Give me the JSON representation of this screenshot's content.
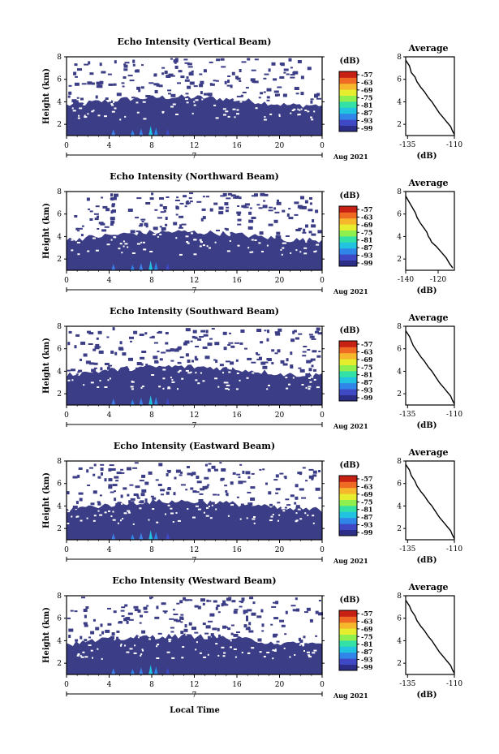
{
  "figure": {
    "common_xlabel": "Local Time",
    "colorbar_unit": "(dB)",
    "colorbar_ticks": [
      "-57",
      "-63",
      "-69",
      "-75",
      "-81",
      "-87",
      "-93",
      "-99"
    ],
    "colormap": [
      "#2b2d86",
      "#3f49c4",
      "#2f86e8",
      "#21c3e0",
      "#33e0a6",
      "#8eef4f",
      "#e6ec2e",
      "#f6b72d",
      "#ef6a22",
      "#c72114"
    ],
    "background_color": "#3b3d86"
  },
  "chart_data": [
    {
      "type": "heatmap",
      "title": "Echo Intensity (Vertical Beam)",
      "ylabel": "Height (km)",
      "ylim": [
        1,
        8
      ],
      "yticks": [
        "2",
        "4",
        "6",
        "8"
      ],
      "xlim": [
        0,
        24
      ],
      "xticks": [
        "0",
        "4",
        "8",
        "12",
        "16",
        "20",
        "0"
      ],
      "date_axis": {
        "day": "7",
        "month_year": "Aug 2021"
      },
      "profile": {
        "title": "Average",
        "xlabel": "(dB)",
        "xlim": [
          -136,
          -110
        ],
        "xticks": [
          "-135",
          "-110"
        ],
        "ylim": [
          1,
          8
        ],
        "yticks": [
          "2",
          "4",
          "6",
          "8"
        ],
        "x": [
          -136,
          -134,
          -133,
          -131,
          -130,
          -128,
          -126,
          -124,
          -122,
          -120,
          -118,
          -116,
          -114,
          -112,
          -111,
          -110
        ],
        "y": [
          7.7,
          7.2,
          6.6,
          6.2,
          5.8,
          5.3,
          4.9,
          4.4,
          4.0,
          3.5,
          3.0,
          2.6,
          2.2,
          1.8,
          1.4,
          1.1
        ]
      }
    },
    {
      "type": "heatmap",
      "title": "Echo Intensity (Northward Beam)",
      "ylabel": "Height (km)",
      "ylim": [
        1,
        8
      ],
      "yticks": [
        "2",
        "4",
        "6",
        "8"
      ],
      "xlim": [
        0,
        24
      ],
      "xticks": [
        "0",
        "4",
        "8",
        "12",
        "16",
        "20",
        "0"
      ],
      "date_axis": {
        "day": "7",
        "month_year": "Aug 2021"
      },
      "profile": {
        "title": "Average",
        "xlabel": "(dB)",
        "xlim": [
          -140,
          -110
        ],
        "xticks": [
          "-140",
          "-120"
        ],
        "ylim": [
          1,
          8
        ],
        "yticks": [
          "2",
          "4",
          "6",
          "8"
        ],
        "x": [
          -140,
          -138,
          -136,
          -134,
          -133,
          -131,
          -129,
          -127,
          -126,
          -125,
          -124,
          -121,
          -118,
          -115,
          -113,
          -111
        ],
        "y": [
          7.6,
          7.1,
          6.6,
          6.1,
          5.7,
          5.2,
          4.8,
          4.4,
          4.0,
          3.8,
          3.5,
          3.1,
          2.6,
          2.1,
          1.6,
          1.2
        ]
      }
    },
    {
      "type": "heatmap",
      "title": "Echo Intensity (Southward Beam)",
      "ylabel": "Height (km)",
      "ylim": [
        1,
        8
      ],
      "yticks": [
        "2",
        "4",
        "6",
        "8"
      ],
      "xlim": [
        0,
        24
      ],
      "xticks": [
        "0",
        "4",
        "8",
        "12",
        "16",
        "20",
        "0"
      ],
      "date_axis": {
        "day": "7",
        "month_year": "Aug 2021"
      },
      "profile": {
        "title": "Average",
        "xlabel": "(dB)",
        "xlim": [
          -136,
          -110
        ],
        "xticks": [
          "-135",
          "-110"
        ],
        "ylim": [
          1,
          8
        ],
        "yticks": [
          "2",
          "4",
          "6",
          "8"
        ],
        "x": [
          -136,
          -134,
          -133,
          -132,
          -130,
          -128,
          -126,
          -124,
          -122,
          -120,
          -118,
          -116,
          -114,
          -112,
          -111,
          -110
        ],
        "y": [
          7.6,
          7.1,
          6.7,
          6.3,
          5.8,
          5.3,
          4.9,
          4.4,
          4.0,
          3.5,
          3.0,
          2.6,
          2.2,
          1.8,
          1.4,
          1.1
        ]
      }
    },
    {
      "type": "heatmap",
      "title": "Echo Intensity (Eastward Beam)",
      "ylabel": "Height (km)",
      "ylim": [
        1,
        8
      ],
      "yticks": [
        "2",
        "4",
        "6",
        "8"
      ],
      "xlim": [
        0,
        24
      ],
      "xticks": [
        "0",
        "4",
        "8",
        "12",
        "16",
        "20",
        "0"
      ],
      "date_axis": {
        "day": "7",
        "month_year": "Aug 2021"
      },
      "profile": {
        "title": "Average",
        "xlabel": "(dB)",
        "xlim": [
          -136,
          -110
        ],
        "xticks": [
          "-135",
          "-110"
        ],
        "ylim": [
          1,
          8
        ],
        "yticks": [
          "2",
          "4",
          "6",
          "8"
        ],
        "x": [
          -136,
          -134,
          -133,
          -131,
          -130,
          -128,
          -126,
          -124,
          -122,
          -120,
          -118,
          -116,
          -114,
          -112,
          -111,
          -110
        ],
        "y": [
          7.7,
          7.2,
          6.7,
          6.2,
          5.8,
          5.3,
          4.9,
          4.4,
          4.0,
          3.5,
          3.0,
          2.6,
          2.2,
          1.8,
          1.4,
          1.1
        ]
      }
    },
    {
      "type": "heatmap",
      "title": "Echo Intensity (Westward Beam)",
      "ylabel": "Height (km)",
      "ylim": [
        1,
        8
      ],
      "yticks": [
        "2",
        "4",
        "6",
        "8"
      ],
      "xlim": [
        0,
        24
      ],
      "xticks": [
        "0",
        "4",
        "8",
        "12",
        "16",
        "20",
        "0"
      ],
      "date_axis": {
        "day": "7",
        "month_year": "Aug 2021"
      },
      "profile": {
        "title": "Average",
        "xlabel": "(dB)",
        "xlim": [
          -136,
          -110
        ],
        "xticks": [
          "-135",
          "-110"
        ],
        "ylim": [
          1,
          8
        ],
        "yticks": [
          "2",
          "4",
          "6",
          "8"
        ],
        "x": [
          -136,
          -134,
          -133,
          -131,
          -130,
          -128,
          -126,
          -124,
          -122,
          -120,
          -118,
          -116,
          -114,
          -112,
          -111,
          -110
        ],
        "y": [
          7.6,
          7.1,
          6.7,
          6.2,
          5.8,
          5.3,
          4.9,
          4.4,
          4.0,
          3.5,
          3.0,
          2.6,
          2.2,
          1.8,
          1.4,
          1.1
        ]
      }
    }
  ]
}
